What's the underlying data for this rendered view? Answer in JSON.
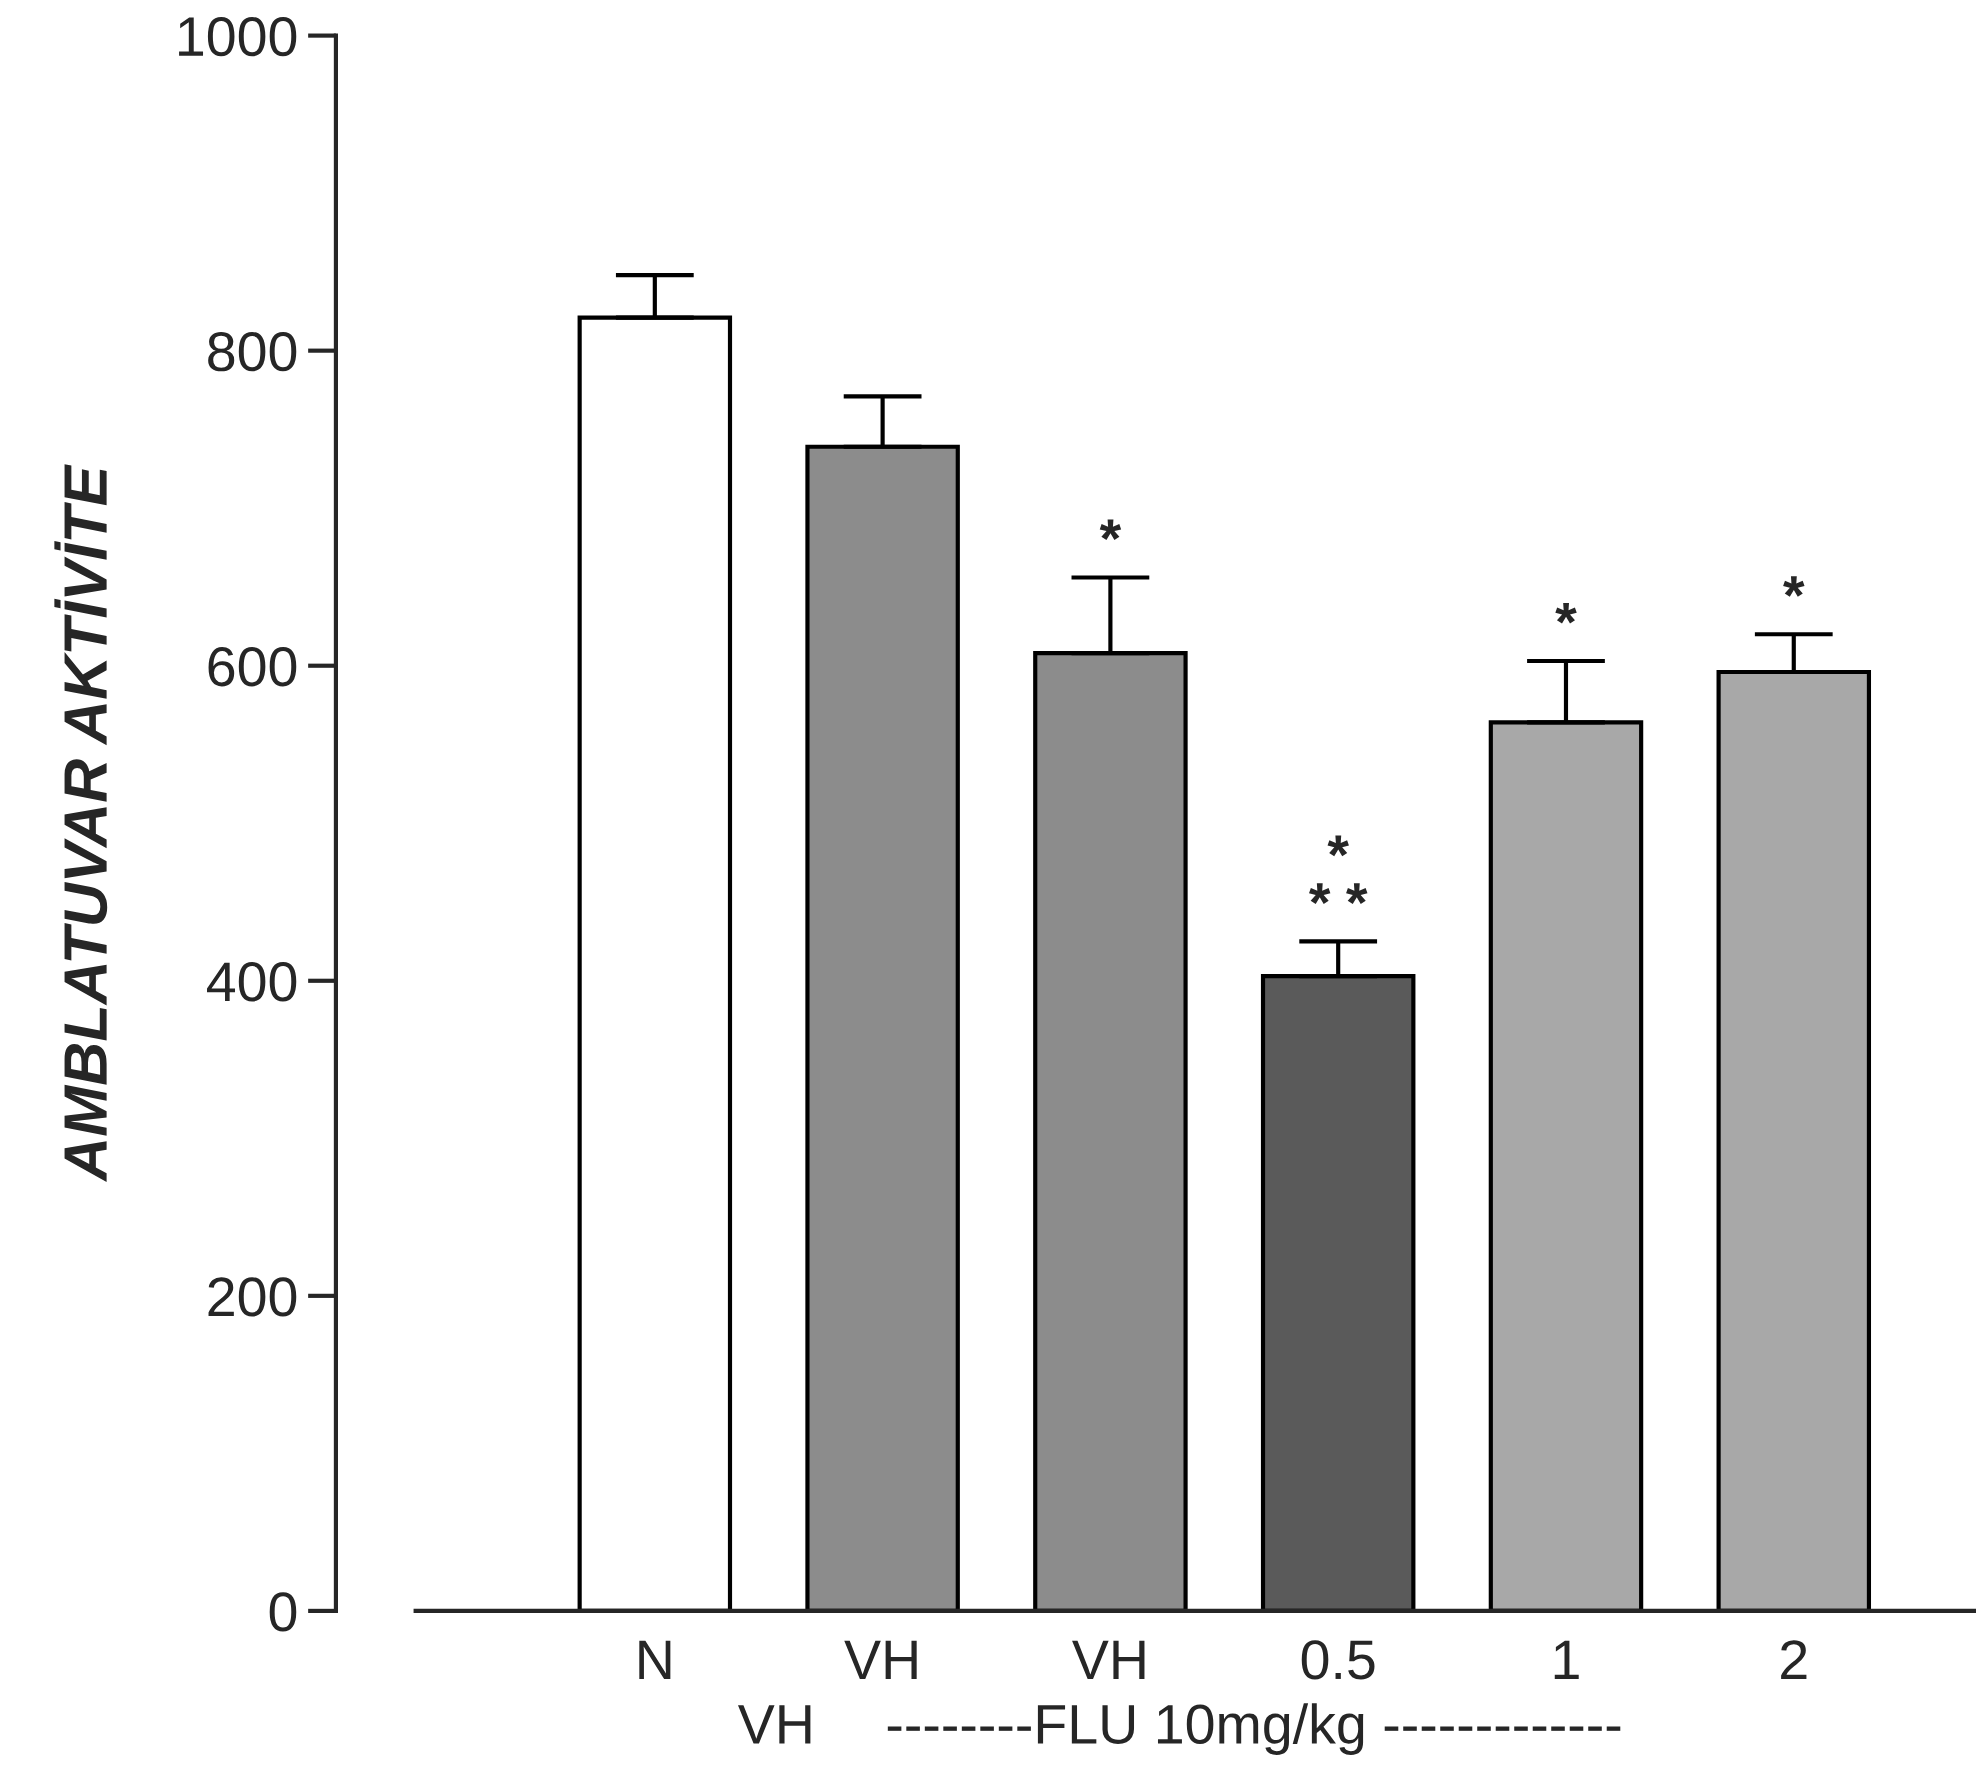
{
  "chart_data": {
    "type": "bar",
    "ylabel": "AMBLATUVAR AKTİVİTE",
    "categories": [
      "N",
      "VH",
      "VH",
      "0.5",
      "1",
      "2"
    ],
    "values": [
      821,
      739,
      608,
      403,
      564,
      596
    ],
    "errors": [
      27,
      32,
      48,
      22,
      39,
      24
    ],
    "colors": [
      "#ffffff",
      "#8c8c8c",
      "#8c8c8c",
      "#5a5a5a",
      "#a8a8a8",
      "#a8a8a8"
    ],
    "value_labels": [
      null,
      null,
      "*",
      "*\n* *",
      "*",
      "*"
    ],
    "ylim": [
      0,
      1000
    ],
    "yticks": [
      0,
      200,
      400,
      600,
      800,
      1000
    ],
    "annotations": [
      "VH",
      "--------FLU 10mg/kg -------------"
    ],
    "grid": false,
    "legend": false
  }
}
